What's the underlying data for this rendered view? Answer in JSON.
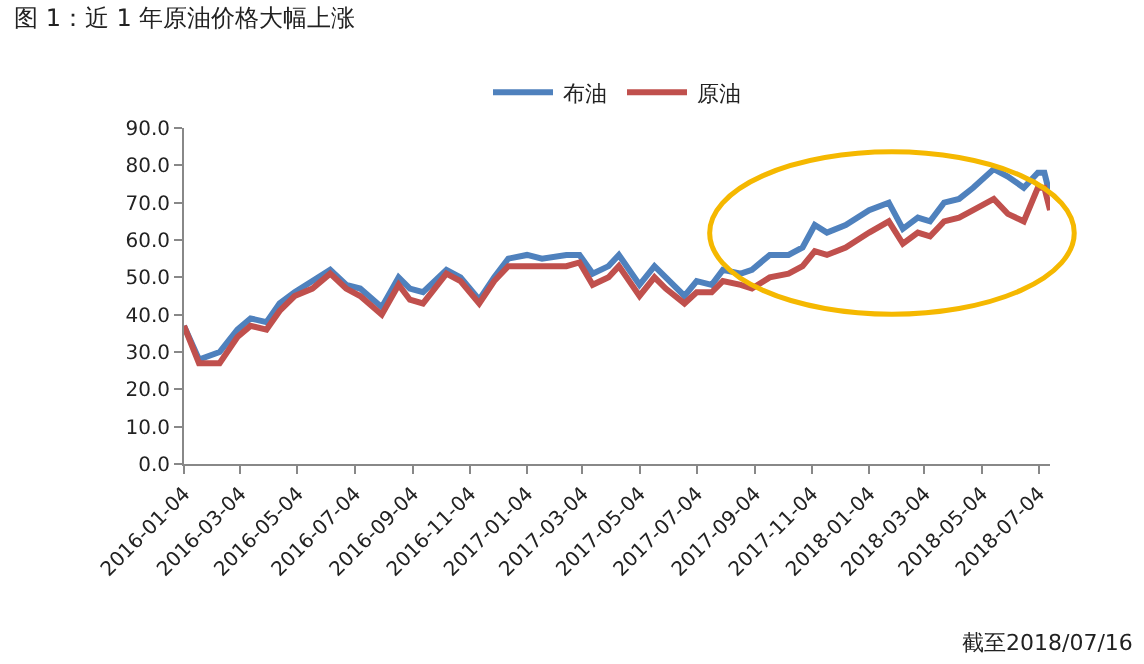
{
  "chart_data": {
    "type": "line",
    "title": "图 1：近 1 年原油价格大幅上涨",
    "annotations": [
      "截至2018/07/16"
    ],
    "x": [
      "2016-01-04",
      "2016-01-20",
      "2016-02-11",
      "2016-03-01",
      "2016-03-15",
      "2016-04-01",
      "2016-04-15",
      "2016-05-01",
      "2016-05-20",
      "2016-06-08",
      "2016-06-25",
      "2016-07-10",
      "2016-08-02",
      "2016-08-20",
      "2016-09-01",
      "2016-09-15",
      "2016-10-10",
      "2016-10-25",
      "2016-11-14",
      "2016-11-30",
      "2016-12-15",
      "2017-01-04",
      "2017-01-20",
      "2017-02-15",
      "2017-03-01",
      "2017-03-15",
      "2017-04-01",
      "2017-04-12",
      "2017-05-04",
      "2017-05-20",
      "2017-06-01",
      "2017-06-21",
      "2017-07-04",
      "2017-07-20",
      "2017-08-01",
      "2017-08-20",
      "2017-09-01",
      "2017-09-20",
      "2017-10-10",
      "2017-10-25",
      "2017-11-07",
      "2017-11-20",
      "2017-12-10",
      "2018-01-04",
      "2018-01-25",
      "2018-02-09",
      "2018-02-25",
      "2018-03-10",
      "2018-03-25",
      "2018-04-10",
      "2018-04-25",
      "2018-05-17",
      "2018-06-01",
      "2018-06-18",
      "2018-07-03",
      "2018-07-10",
      "2018-07-16"
    ],
    "series": [
      {
        "name": "布油",
        "color": "#4f81bd",
        "values": [
          37,
          28,
          30,
          36,
          39,
          38,
          43,
          46,
          49,
          52,
          48,
          47,
          42,
          50,
          47,
          46,
          52,
          50,
          44,
          50,
          55,
          56,
          55,
          56,
          56,
          51,
          53,
          56,
          48,
          53,
          50,
          45,
          49,
          48,
          52,
          51,
          52,
          56,
          56,
          58,
          64,
          62,
          64,
          68,
          70,
          63,
          66,
          65,
          70,
          71,
          74,
          79,
          77,
          74,
          78,
          78,
          72
        ]
      },
      {
        "name": "原油",
        "color": "#c0504d",
        "values": [
          37,
          27,
          27,
          34,
          37,
          36,
          41,
          45,
          47,
          51,
          47,
          45,
          40,
          48,
          44,
          43,
          51,
          49,
          43,
          49,
          53,
          53,
          53,
          53,
          54,
          48,
          50,
          53,
          45,
          50,
          47,
          43,
          46,
          46,
          49,
          48,
          47,
          50,
          51,
          53,
          57,
          56,
          58,
          62,
          65,
          59,
          62,
          61,
          65,
          66,
          68,
          71,
          67,
          65,
          74,
          74,
          68
        ]
      }
    ],
    "xlim": [
      "2016-01-04",
      "2018-07-16"
    ],
    "xticks": [
      "2016-01-04",
      "2016-03-04",
      "2016-05-04",
      "2016-07-04",
      "2016-09-04",
      "2016-11-04",
      "2017-01-04",
      "2017-03-04",
      "2017-05-04",
      "2017-07-04",
      "2017-09-04",
      "2017-11-04",
      "2018-01-04",
      "2018-03-04",
      "2018-05-04",
      "2018-07-04"
    ],
    "ylim": [
      0,
      90
    ],
    "yticks": [
      {
        "value": 0,
        "label": "0.0"
      },
      {
        "value": 10,
        "label": "10.0"
      },
      {
        "value": 20,
        "label": "20.0"
      },
      {
        "value": 30,
        "label": "30.0"
      },
      {
        "value": 40,
        "label": "40.0"
      },
      {
        "value": 50,
        "label": "50.0"
      },
      {
        "value": 60,
        "label": "60.0"
      },
      {
        "value": 70,
        "label": "70.0"
      },
      {
        "value": 80,
        "label": "80.0"
      },
      {
        "value": 90,
        "label": "90.0"
      }
    ],
    "legend": "top",
    "marker": "none",
    "line_style": "solid"
  }
}
